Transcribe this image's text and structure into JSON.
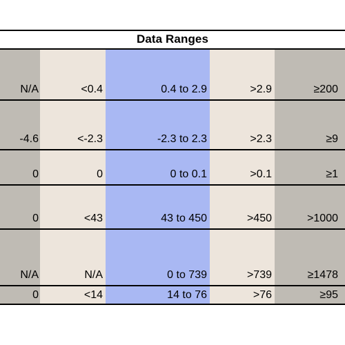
{
  "title": "Data Ranges",
  "colors": {
    "gray": "#bfbbb4",
    "beige": "#ede5dc",
    "blue": "#a9b8f3",
    "border": "#000000"
  },
  "rows": [
    [
      "N/A",
      "<0.4",
      "0.4 to 2.9",
      ">2.9",
      "≥200"
    ],
    [
      "-4.6",
      "<-2.3",
      "-2.3 to 2.3",
      ">2.3",
      "≥9"
    ],
    [
      "0",
      "0",
      "0 to 0.1",
      ">0.1",
      "≥1"
    ],
    [
      "0",
      "<43",
      "43 to 450",
      ">450",
      ">1000"
    ],
    [
      "N/A",
      "N/A",
      "0 to 739",
      ">739",
      "≥1478"
    ],
    [
      "0",
      "<14",
      "14  to 76",
      ">76",
      "≥95"
    ]
  ]
}
